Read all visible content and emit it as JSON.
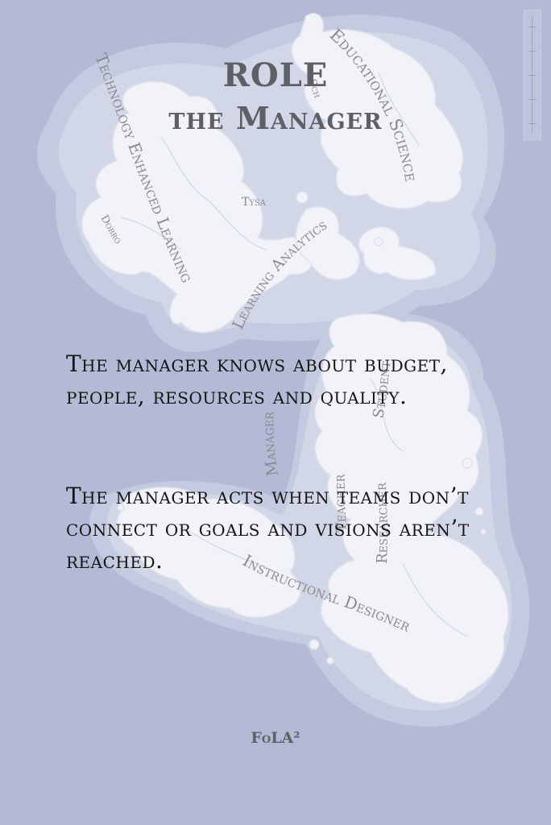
{
  "card": {
    "title_line1": "ROLE",
    "title_line2": "the Manager",
    "paragraph1": "The manager knows about budget, people, resources and quality.",
    "paragraph2": "The manager acts when teams don’t connect or goals and visions aren’t reached.",
    "footer": "FoLA²"
  },
  "map": {
    "labels": {
      "tel": "Technology Enhanced Learning",
      "edu_sci": "Educational Science",
      "la": "Learning Analytics",
      "tysa": "Tysa",
      "dobro": "Dobro",
      "manager": "Manager",
      "student": "Student",
      "teacher": "Teacher",
      "researcher": "Researcher",
      "id": "Instructional Designer",
      "scb": "Sch"
    }
  },
  "colors": {
    "background": "#b3bad5",
    "island": "#f2f3f8",
    "title": "#5f5f66",
    "text": "#151515"
  }
}
